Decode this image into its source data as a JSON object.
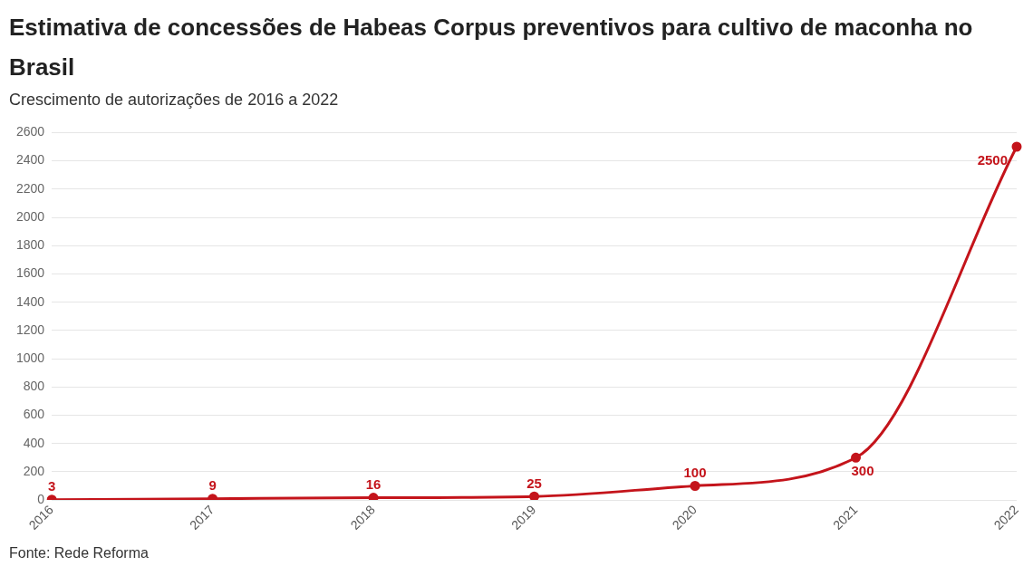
{
  "chart_data": {
    "type": "line",
    "title": "Estimativa de concessões de Habeas Corpus preventivos para cultivo de maconha no Brasil",
    "subtitle": "Crescimento de autorizações de 2016 a 2022",
    "categories": [
      "2016",
      "2017",
      "2018",
      "2019",
      "2020",
      "2021",
      "2022"
    ],
    "series": [
      {
        "color": "#c4141b",
        "values": [
          3,
          9,
          16,
          25,
          100,
          300,
          2500
        ]
      }
    ],
    "ylim": [
      0,
      2600
    ],
    "yticks": [
      0,
      200,
      400,
      600,
      800,
      1000,
      1200,
      1400,
      1600,
      1800,
      2000,
      2200,
      2400,
      2600
    ],
    "grid": "y",
    "marker": "circle",
    "data_labels": true,
    "annotations": [
      "Fonte: Rede Reforma"
    ]
  }
}
